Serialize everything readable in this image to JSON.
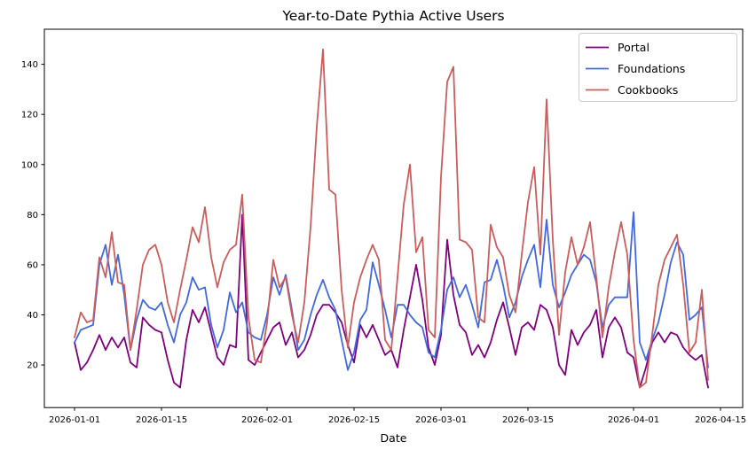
{
  "title": "Year-to-Date Pythia Active Users",
  "chart_data": {
    "type": "line",
    "title": "Year-to-Date Pythia Active Users",
    "xlabel": "Date",
    "ylabel": "",
    "x_start": "2026-01-01",
    "x_unit": "days since 2026-01-01, one point per day",
    "num_points": 103,
    "grid": false,
    "legend_position": "upper right",
    "xlim_days": [
      -4.86,
      107.57
    ],
    "ylim": [
      3,
      154
    ],
    "yticks": [
      20,
      40,
      60,
      80,
      100,
      120,
      140
    ],
    "xticks": [
      {
        "label": "2026-01-01",
        "day": 0
      },
      {
        "label": "2026-01-15",
        "day": 14
      },
      {
        "label": "2026-02-01",
        "day": 31
      },
      {
        "label": "2026-02-15",
        "day": 45
      },
      {
        "label": "2026-03-01",
        "day": 59
      },
      {
        "label": "2026-03-15",
        "day": 73
      },
      {
        "label": "2026-04-01",
        "day": 90
      },
      {
        "label": "2026-04-15",
        "day": 104
      }
    ],
    "series": [
      {
        "name": "Portal",
        "color": "#800080",
        "values": [
          29,
          18,
          21,
          26,
          32,
          26,
          31,
          27,
          31,
          21,
          19,
          39,
          36,
          34,
          33,
          22,
          13,
          11,
          30,
          42,
          37,
          43,
          33,
          23,
          20,
          28,
          27,
          80,
          22,
          20,
          25,
          30,
          35,
          37,
          28,
          33,
          23,
          26,
          32,
          40,
          44,
          44,
          41,
          37,
          28,
          21,
          36,
          31,
          36,
          30,
          24,
          26,
          19,
          34,
          47,
          60,
          46,
          27,
          20,
          32,
          70,
          48,
          36,
          33,
          24,
          28,
          23,
          29,
          38,
          45,
          35,
          24,
          35,
          37,
          34,
          44,
          42,
          35,
          20,
          16,
          34,
          28,
          33,
          36,
          42,
          23,
          35,
          39,
          35,
          25,
          23,
          11,
          19,
          29,
          33,
          29,
          33,
          32,
          27,
          24,
          22,
          24,
          11
        ]
      },
      {
        "name": "Foundations",
        "color": "#4169e1",
        "values": [
          29,
          34,
          35,
          36,
          60,
          68,
          52,
          64,
          48,
          26,
          38,
          46,
          43,
          42,
          45,
          36,
          29,
          40,
          45,
          55,
          50,
          51,
          36,
          27,
          34,
          49,
          41,
          45,
          33,
          31,
          30,
          40,
          55,
          48,
          56,
          42,
          26,
          30,
          40,
          48,
          54,
          47,
          42,
          30,
          18,
          25,
          38,
          42,
          61,
          52,
          42,
          31,
          44,
          44,
          40,
          37,
          35,
          25,
          23,
          34,
          50,
          55,
          47,
          52,
          44,
          35,
          53,
          54,
          62,
          52,
          39,
          45,
          55,
          62,
          68,
          51,
          78,
          52,
          43,
          49,
          56,
          60,
          64,
          62,
          53,
          35,
          44,
          47,
          47,
          47,
          81,
          29,
          22,
          30,
          37,
          48,
          61,
          69,
          64,
          38,
          40,
          43,
          19
        ]
      },
      {
        "name": "Cookbooks",
        "color": "#cd5c5c",
        "values": [
          31,
          41,
          37,
          38,
          63,
          55,
          73,
          53,
          52,
          26,
          42,
          60,
          66,
          68,
          60,
          45,
          37,
          50,
          62,
          75,
          69,
          83,
          63,
          51,
          61,
          66,
          68,
          88,
          39,
          22,
          21,
          37,
          62,
          51,
          55,
          40,
          29,
          45,
          75,
          115,
          146,
          90,
          88,
          50,
          27,
          45,
          55,
          62,
          68,
          62,
          30,
          26,
          55,
          84,
          100,
          65,
          71,
          34,
          31,
          95,
          133,
          139,
          70,
          69,
          66,
          39,
          37,
          76,
          67,
          63,
          48,
          41,
          64,
          85,
          99,
          64,
          126,
          70,
          32,
          57,
          71,
          60,
          67,
          77,
          55,
          31,
          51,
          65,
          77,
          64,
          30,
          11,
          13,
          32,
          52,
          62,
          67,
          72,
          52,
          25,
          29,
          50,
          14
        ]
      }
    ]
  }
}
